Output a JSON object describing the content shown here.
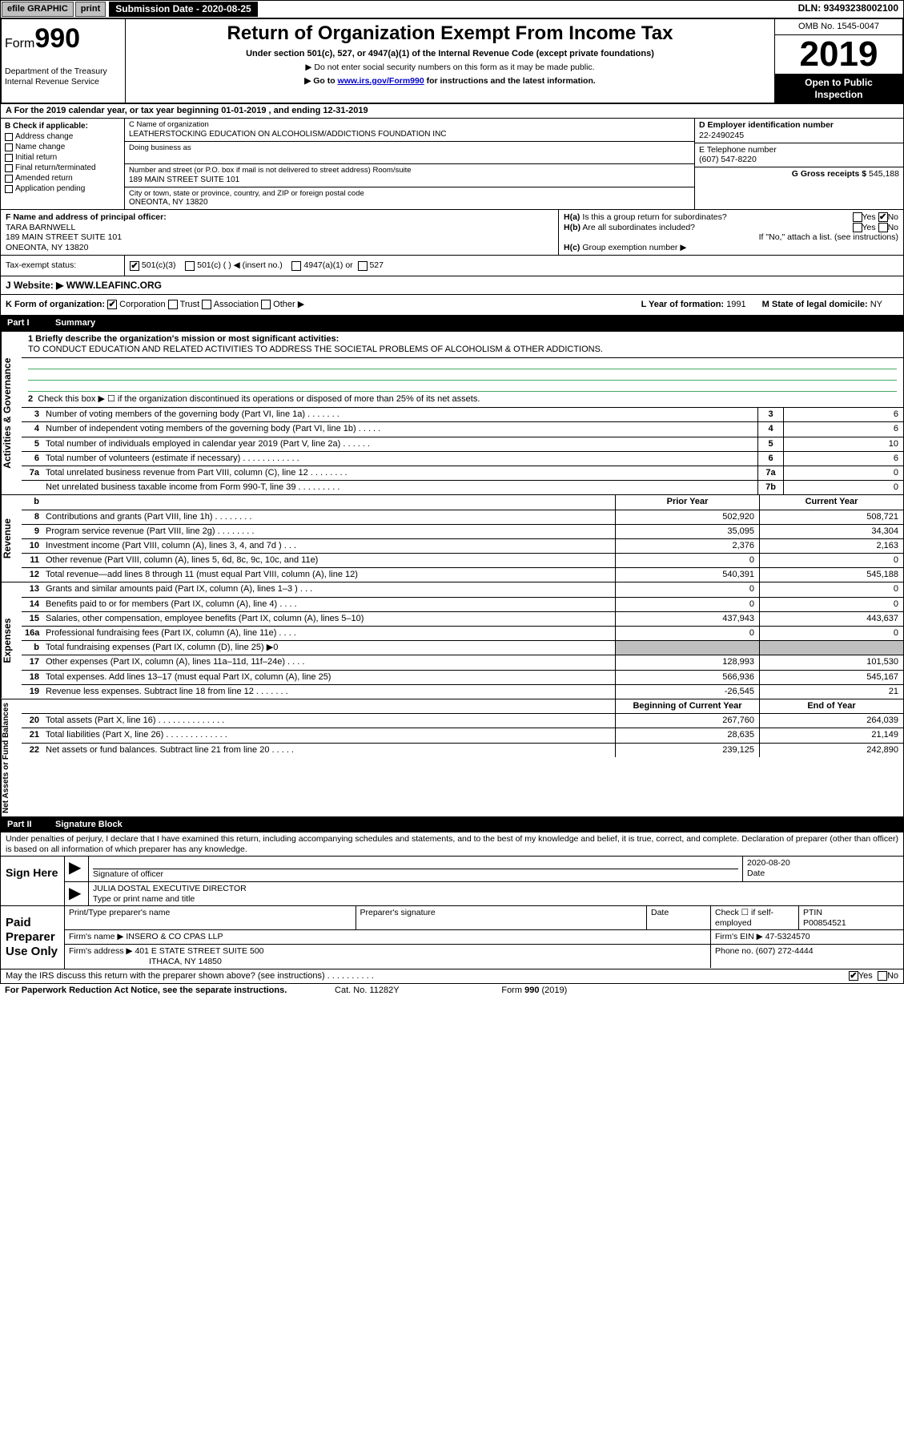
{
  "topbar": {
    "efile": "efile GRAPHIC",
    "print": "print",
    "sub_lbl": "Submission Date - ",
    "sub_date": "2020-08-25",
    "dln": "DLN: 93493238002100"
  },
  "hdr": {
    "form_pre": "Form",
    "form_no": "990",
    "dept": "Department of the Treasury\nInternal Revenue Service",
    "title": "Return of Organization Exempt From Income Tax",
    "sub": "Under section 501(c), 527, or 4947(a)(1) of the Internal Revenue Code (except private foundations)",
    "note1": "▶ Do not enter social security numbers on this form as it may be made public.",
    "note2_a": "▶ Go to ",
    "note2_link": "www.irs.gov/Form990",
    "note2_b": " for instructions and the latest information.",
    "omb": "OMB No. 1545-0047",
    "year": "2019",
    "inspect1": "Open to Public",
    "inspect2": "Inspection"
  },
  "rowA": "A For the 2019 calendar year, or tax year beginning 01-01-2019   , and ending 12-31-2019",
  "colB": {
    "hdr": "B Check if applicable:",
    "items": [
      "Address change",
      "Name change",
      "Initial return",
      "Final return/terminated",
      "Amended return",
      "Application pending"
    ]
  },
  "colC": {
    "name_lbl": "C Name of organization",
    "name": "LEATHERSTOCKING EDUCATION ON ALCOHOLISM/ADDICTIONS FOUNDATION INC",
    "dba_lbl": "Doing business as",
    "addr_lbl": "Number and street (or P.O. box if mail is not delivered to street address)      Room/suite",
    "addr": "189 MAIN STREET SUITE 101",
    "city_lbl": "City or town, state or province, country, and ZIP or foreign postal code",
    "city": "ONEONTA, NY  13820"
  },
  "colDE": {
    "d_lbl": "D Employer identification number",
    "d_val": "22-2490245",
    "e_lbl": "E Telephone number",
    "e_val": "(607) 547-8220",
    "g_lbl": "G Gross receipts $ ",
    "g_val": "545,188"
  },
  "colF": {
    "lbl": "F  Name and address of principal officer:",
    "name": "TARA BARNWELL",
    "addr1": "189 MAIN STREET SUITE 101",
    "addr2": "ONEONTA, NY  13820"
  },
  "colH": {
    "a": "H(a)  Is this a group return for subordinates?",
    "b": "H(b)  Are all subordinates included?",
    "bnote": "If \"No,\" attach a list. (see instructions)",
    "c": "H(c)  Group exemption number ▶",
    "yes": "Yes",
    "no": "No"
  },
  "rowI": {
    "lbl": "Tax-exempt status:",
    "o1": "501(c)(3)",
    "o2": "501(c) (   ) ◀ (insert no.)",
    "o3": "4947(a)(1) or",
    "o4": "527"
  },
  "rowJ": {
    "lbl": "J   Website: ▶ ",
    "val": "WWW.LEAFINC.ORG"
  },
  "rowK": {
    "k": "K Form of organization:",
    "k1": "Corporation",
    "k2": "Trust",
    "k3": "Association",
    "k4": "Other ▶",
    "l": "L Year of formation: ",
    "l_val": "1991",
    "m": "M State of legal domicile: ",
    "m_val": "NY"
  },
  "part1": {
    "hdr": "Part I",
    "title": "Summary"
  },
  "p1": {
    "l1_lbl": "1  Briefly describe the organization's mission or most significant activities:",
    "l1_txt": "TO CONDUCT EDUCATION AND RELATED ACTIVITIES TO ADDRESS THE SOCIETAL PROBLEMS OF ALCOHOLISM & OTHER ADDICTIONS.",
    "l2": "Check this box ▶ ☐  if the organization discontinued its operations or disposed of more than 25% of its net assets.",
    "rows": [
      {
        "n": "3",
        "d": "Number of voting members of the governing body (Part VI, line 1a)   .   .   .   .   .   .   .",
        "c": "3",
        "v": "6"
      },
      {
        "n": "4",
        "d": "Number of independent voting members of the governing body (Part VI, line 1b)   .   .   .   .   .",
        "c": "4",
        "v": "6"
      },
      {
        "n": "5",
        "d": "Total number of individuals employed in calendar year 2019 (Part V, line 2a)   .   .   .   .   .   .",
        "c": "5",
        "v": "10"
      },
      {
        "n": "6",
        "d": "Total number of volunteers (estimate if necessary)   .   .   .   .   .   .   .   .   .   .   .   .",
        "c": "6",
        "v": "6"
      },
      {
        "n": "7a",
        "d": "Total unrelated business revenue from Part VIII, column (C), line 12   .   .   .   .   .   .   .   .",
        "c": "7a",
        "v": "0"
      },
      {
        "n": "",
        "d": "Net unrelated business taxable income from Form 990-T, line 39   .   .   .   .   .   .   .   .   .",
        "c": "7b",
        "v": "0"
      }
    ],
    "col_prior": "Prior Year",
    "col_curr": "Current Year",
    "rev": [
      {
        "n": "8",
        "d": "Contributions and grants (Part VIII, line 1h)   .   .   .   .   .   .   .   .",
        "p": "502,920",
        "c": "508,721"
      },
      {
        "n": "9",
        "d": "Program service revenue (Part VIII, line 2g)   .   .   .   .   .   .   .   .",
        "p": "35,095",
        "c": "34,304"
      },
      {
        "n": "10",
        "d": "Investment income (Part VIII, column (A), lines 3, 4, and 7d )   .   .   .",
        "p": "2,376",
        "c": "2,163"
      },
      {
        "n": "11",
        "d": "Other revenue (Part VIII, column (A), lines 5, 6d, 8c, 9c, 10c, and 11e)",
        "p": "0",
        "c": "0"
      },
      {
        "n": "12",
        "d": "Total revenue—add lines 8 through 11 (must equal Part VIII, column (A), line 12)",
        "p": "540,391",
        "c": "545,188"
      }
    ],
    "exp": [
      {
        "n": "13",
        "d": "Grants and similar amounts paid (Part IX, column (A), lines 1–3 )   .   .   .",
        "p": "0",
        "c": "0"
      },
      {
        "n": "14",
        "d": "Benefits paid to or for members (Part IX, column (A), line 4)   .   .   .   .",
        "p": "0",
        "c": "0"
      },
      {
        "n": "15",
        "d": "Salaries, other compensation, employee benefits (Part IX, column (A), lines 5–10)",
        "p": "437,943",
        "c": "443,637"
      },
      {
        "n": "16a",
        "d": "Professional fundraising fees (Part IX, column (A), line 11e)   .   .   .   .",
        "p": "0",
        "c": "0"
      },
      {
        "n": "b",
        "d": "Total fundraising expenses (Part IX, column (D), line 25) ▶0",
        "p": "",
        "c": "",
        "grey": true
      },
      {
        "n": "17",
        "d": "Other expenses (Part IX, column (A), lines 11a–11d, 11f–24e)   .   .   .   .",
        "p": "128,993",
        "c": "101,530"
      },
      {
        "n": "18",
        "d": "Total expenses. Add lines 13–17 (must equal Part IX, column (A), line 25)",
        "p": "566,936",
        "c": "545,167"
      },
      {
        "n": "19",
        "d": "Revenue less expenses. Subtract line 18 from line 12   .   .   .   .   .   .   .",
        "p": "-26,545",
        "c": "21"
      }
    ],
    "col_beg": "Beginning of Current Year",
    "col_end": "End of Year",
    "net": [
      {
        "n": "20",
        "d": "Total assets (Part X, line 16)   .   .   .   .   .   .   .   .   .   .   .   .   .   .",
        "p": "267,760",
        "c": "264,039"
      },
      {
        "n": "21",
        "d": "Total liabilities (Part X, line 26)   .   .   .   .   .   .   .   .   .   .   .   .   .",
        "p": "28,635",
        "c": "21,149"
      },
      {
        "n": "22",
        "d": "Net assets or fund balances. Subtract line 21 from line 20   .   .   .   .   .",
        "p": "239,125",
        "c": "242,890"
      }
    ],
    "side_gov": "Activities & Governance",
    "side_rev": "Revenue",
    "side_exp": "Expenses",
    "side_net": "Net Assets or Fund Balances"
  },
  "part2": {
    "hdr": "Part II",
    "title": "Signature Block"
  },
  "perjury": "Under penalties of perjury, I declare that I have examined this return, including accompanying schedules and statements, and to the best of my knowledge and belief, it is true, correct, and complete. Declaration of preparer (other than officer) is based on all information of which preparer has any knowledge.",
  "sign": {
    "here": "Sign Here",
    "sig_lbl": "Signature of officer",
    "date_lbl": "Date",
    "date_val": "2020-08-20",
    "name": "JULIA DOSTAL  EXECUTIVE DIRECTOR",
    "name_lbl": "Type or print name and title"
  },
  "paid": {
    "lbl": "Paid Preparer Use Only",
    "col1": "Print/Type preparer's name",
    "col2": "Preparer's signature",
    "col3": "Date",
    "col4a": "Check ☐ if self-employed",
    "col5_lbl": "PTIN",
    "col5": "P00854521",
    "firm_lbl": "Firm's name    ▶ ",
    "firm": "INSERO & CO CPAS LLP",
    "ein_lbl": "Firm's EIN ▶ ",
    "ein": "47-5324570",
    "addr_lbl": "Firm's address ▶ ",
    "addr1": "401 E STATE STREET SUITE 500",
    "addr2": "ITHACA, NY  14850",
    "phone_lbl": "Phone no. ",
    "phone": "(607) 272-4444"
  },
  "footer": {
    "discuss": "May the IRS discuss this return with the preparer shown above? (see instructions)   .   .   .   .   .   .   .   .   .   .",
    "yes": "Yes",
    "no": "No",
    "pra": "For Paperwork Reduction Act Notice, see the separate instructions.",
    "cat": "Cat. No. 11282Y",
    "form": "Form 990 (2019)"
  }
}
